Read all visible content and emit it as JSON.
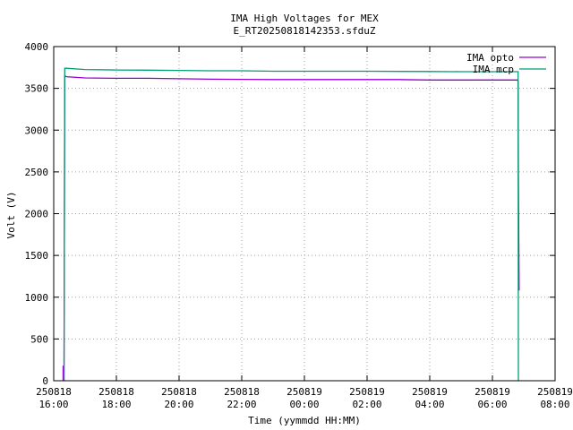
{
  "chart_data": {
    "type": "line",
    "title": "IMA High Voltages for MEX",
    "subtitle": "E_RT20250818142353.sfduZ",
    "xlabel": "Time (yymmdd HH:MM)",
    "ylabel": "Volt (V)",
    "x_unit": "hours",
    "xlim": [
      16,
      32
    ],
    "ylim": [
      0,
      4000
    ],
    "x_ticks": [
      {
        "value": 16,
        "date": "250818",
        "time": "16:00"
      },
      {
        "value": 18,
        "date": "250818",
        "time": "18:00"
      },
      {
        "value": 20,
        "date": "250818",
        "time": "20:00"
      },
      {
        "value": 22,
        "date": "250818",
        "time": "22:00"
      },
      {
        "value": 24,
        "date": "250819",
        "time": "00:00"
      },
      {
        "value": 26,
        "date": "250819",
        "time": "02:00"
      },
      {
        "value": 28,
        "date": "250819",
        "time": "04:00"
      },
      {
        "value": 30,
        "date": "250819",
        "time": "06:00"
      },
      {
        "value": 32,
        "date": "250819",
        "time": "08:00"
      }
    ],
    "y_ticks": [
      0,
      500,
      1000,
      1500,
      2000,
      2500,
      3000,
      3500,
      4000
    ],
    "grid": true,
    "legend_position": "top-right",
    "series": [
      {
        "name": "IMA opto",
        "color": "#9400d3",
        "x": [
          16.3,
          16.3,
          16.33,
          16.35,
          16.4,
          17,
          18,
          19,
          20,
          21,
          22,
          23,
          24,
          25,
          26,
          27,
          28,
          29,
          30,
          30.8,
          30.82,
          30.83,
          30.85
        ],
        "y": [
          0,
          180,
          0,
          3650,
          3640,
          3625,
          3620,
          3620,
          3615,
          3610,
          3608,
          3605,
          3605,
          3605,
          3605,
          3605,
          3600,
          3600,
          3600,
          3600,
          3580,
          2500,
          1080
        ]
      },
      {
        "name": "IMA mcp",
        "color": "#009e73",
        "x": [
          16.33,
          16.35,
          16.4,
          17,
          18,
          19,
          20,
          21,
          22,
          23,
          24,
          25,
          26,
          27,
          28,
          29,
          30,
          30.8,
          30.82,
          30.83
        ],
        "y": [
          0,
          3740,
          3740,
          3725,
          3720,
          3718,
          3715,
          3710,
          3710,
          3705,
          3705,
          3705,
          3705,
          3703,
          3702,
          3700,
          3700,
          3700,
          3700,
          0
        ]
      }
    ]
  }
}
